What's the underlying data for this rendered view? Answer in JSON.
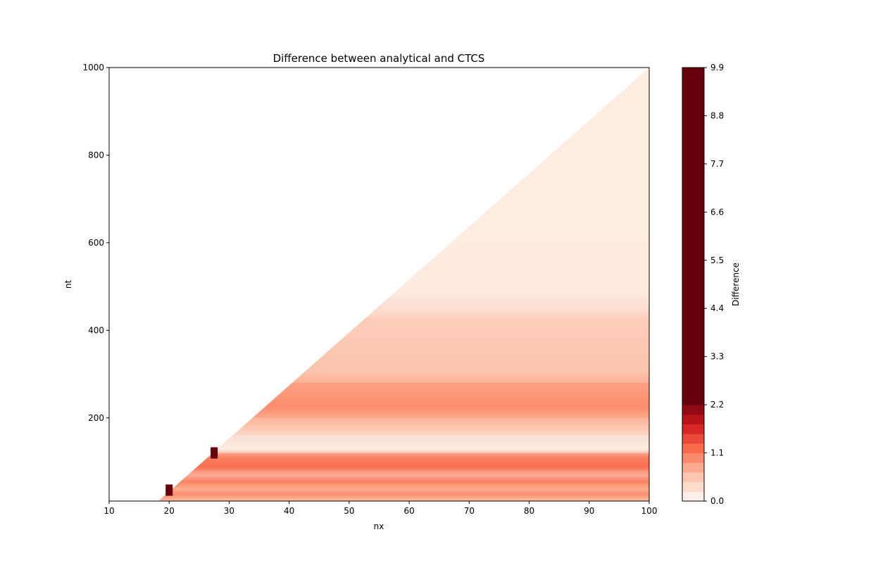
{
  "chart_data": {
    "type": "heatmap",
    "title": "Difference between analytical and CTCS",
    "xlabel": "nx",
    "ylabel": "nt",
    "xlim": [
      10,
      100
    ],
    "ylim": [
      10,
      1000
    ],
    "x_ticks": [
      10,
      20,
      30,
      40,
      50,
      60,
      70,
      80,
      90,
      100
    ],
    "y_ticks": [
      200,
      400,
      600,
      800,
      1000
    ],
    "colormap": "Reds",
    "colorbar": {
      "label": "Difference",
      "range": [
        0.0,
        9.9
      ],
      "ticks": [
        "0.0",
        "1.1",
        "2.2",
        "3.3",
        "4.4",
        "5.5",
        "6.6",
        "7.7",
        "8.8",
        "9.9"
      ]
    },
    "valid_region": "nt >= 10*nx (white above boundary)",
    "regions": [
      {
        "description": "upper wedge, low difference",
        "nt_range": [
          480,
          1000
        ],
        "value": 0.1
      },
      {
        "description": "band",
        "nt_range": [
          430,
          480
        ],
        "value": 0.2
      },
      {
        "description": "band",
        "nt_range": [
          280,
          430
        ],
        "value": 0.45
      },
      {
        "description": "high band",
        "nt_range": [
          200,
          280
        ],
        "value": 0.9
      },
      {
        "description": "band",
        "nt_range": [
          160,
          200
        ],
        "value": 0.5
      },
      {
        "description": "light band",
        "nt_range": [
          120,
          160
        ],
        "value": 0.2
      },
      {
        "description": "high band",
        "nt_range": [
          80,
          120
        ],
        "value": 1.2
      },
      {
        "description": "band",
        "nt_range": [
          40,
          80
        ],
        "value": 0.8
      },
      {
        "description": "band",
        "nt_range": [
          10,
          40
        ],
        "value": 0.6
      }
    ],
    "hotspots": [
      {
        "nx": 20,
        "nt": 35,
        "value": 9.9
      },
      {
        "nx": 27.5,
        "nt": 120,
        "value": 9.9
      }
    ]
  }
}
